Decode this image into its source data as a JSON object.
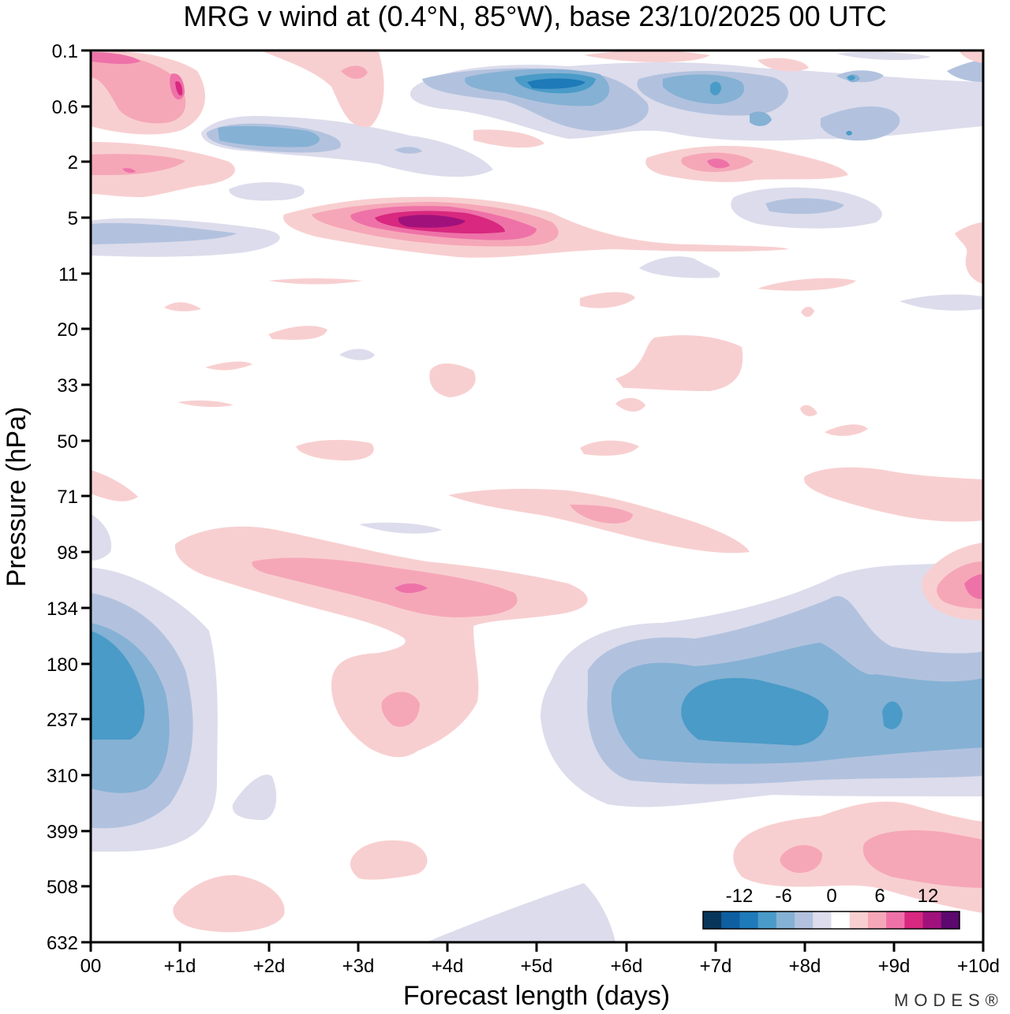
{
  "chart_data": {
    "type": "heatmap",
    "title": "MRG v wind at (0.4°N, 85°W),  base 23/10/2025  00 UTC",
    "xlabel": "Forecast length (days)",
    "ylabel": "Pressure (hPa)",
    "x_ticks": [
      "00",
      "+1d",
      "+2d",
      "+3d",
      "+4d",
      "+5d",
      "+6d",
      "+7d",
      "+8d",
      "+9d",
      "+10d"
    ],
    "xlim": [
      0,
      10
    ],
    "y_ticks": [
      "0.1",
      "0.6",
      "2",
      "5",
      "11",
      "20",
      "33",
      "50",
      "71",
      "98",
      "134",
      "180",
      "237",
      "310",
      "399",
      "508",
      "632"
    ],
    "ylim_levels": [
      0,
      16
    ],
    "colorbar": {
      "ticks": [
        "-12",
        "-6",
        "0",
        "6",
        "12"
      ],
      "bin_edges": [
        -18,
        -15,
        -12,
        -9,
        -6,
        -3,
        0,
        3,
        6,
        9,
        12,
        15,
        18
      ],
      "colors": [
        "#08365a",
        "#0d5fa0",
        "#1e7ab8",
        "#4a9bc8",
        "#85b1d4",
        "#b2c2de",
        "#dcdcec",
        "#ffffff",
        "#f8cfd0",
        "#f5a7b8",
        "#ee72a8",
        "#d8287f",
        "#a0117b",
        "#5c086e"
      ]
    },
    "features": [
      {
        "name": "positive-0.1hPa",
        "day": 0.8,
        "level": 0.5,
        "value": 8
      },
      {
        "name": "negative-0.4hPa-day5",
        "day": 5.2,
        "level": 0.6,
        "value": -13
      },
      {
        "name": "negative-1hPa-day2",
        "day": 2.0,
        "level": 1.5,
        "value": -8
      },
      {
        "name": "negative-0.4hPa-day7",
        "day": 7.0,
        "level": 0.8,
        "value": -9
      },
      {
        "name": "positive-2hPa-day0",
        "day": 0.5,
        "level": 2.0,
        "value": 5
      },
      {
        "name": "positive-2hPa-day8",
        "day": 7.9,
        "level": 2.0,
        "value": 8
      },
      {
        "name": "negative-5hPa-day0",
        "day": 0.3,
        "level": 3.3,
        "value": -6
      },
      {
        "name": "positive-5hPa-day4",
        "day": 4.0,
        "level": 3.0,
        "value": 14
      },
      {
        "name": "negative-4hPa-day8",
        "day": 8.2,
        "level": 2.8,
        "value": -6
      },
      {
        "name": "positive-98hPa-day3",
        "day": 3.5,
        "level": 10.5,
        "value": 8
      },
      {
        "name": "positive-237hPa-day3",
        "day": 3.5,
        "level": 12.3,
        "value": 5
      },
      {
        "name": "negative-180hPa-day0",
        "day": 0.3,
        "level": 12.0,
        "value": -11
      },
      {
        "name": "negative-237hPa-day7",
        "day": 8.0,
        "level": 12.2,
        "value": -11
      },
      {
        "name": "positive-134hPa-day10",
        "day": 9.9,
        "level": 10.6,
        "value": 8
      },
      {
        "name": "positive-508hPa-day9",
        "day": 9.0,
        "level": 14.8,
        "value": 6
      }
    ]
  },
  "watermark": "MODES®"
}
